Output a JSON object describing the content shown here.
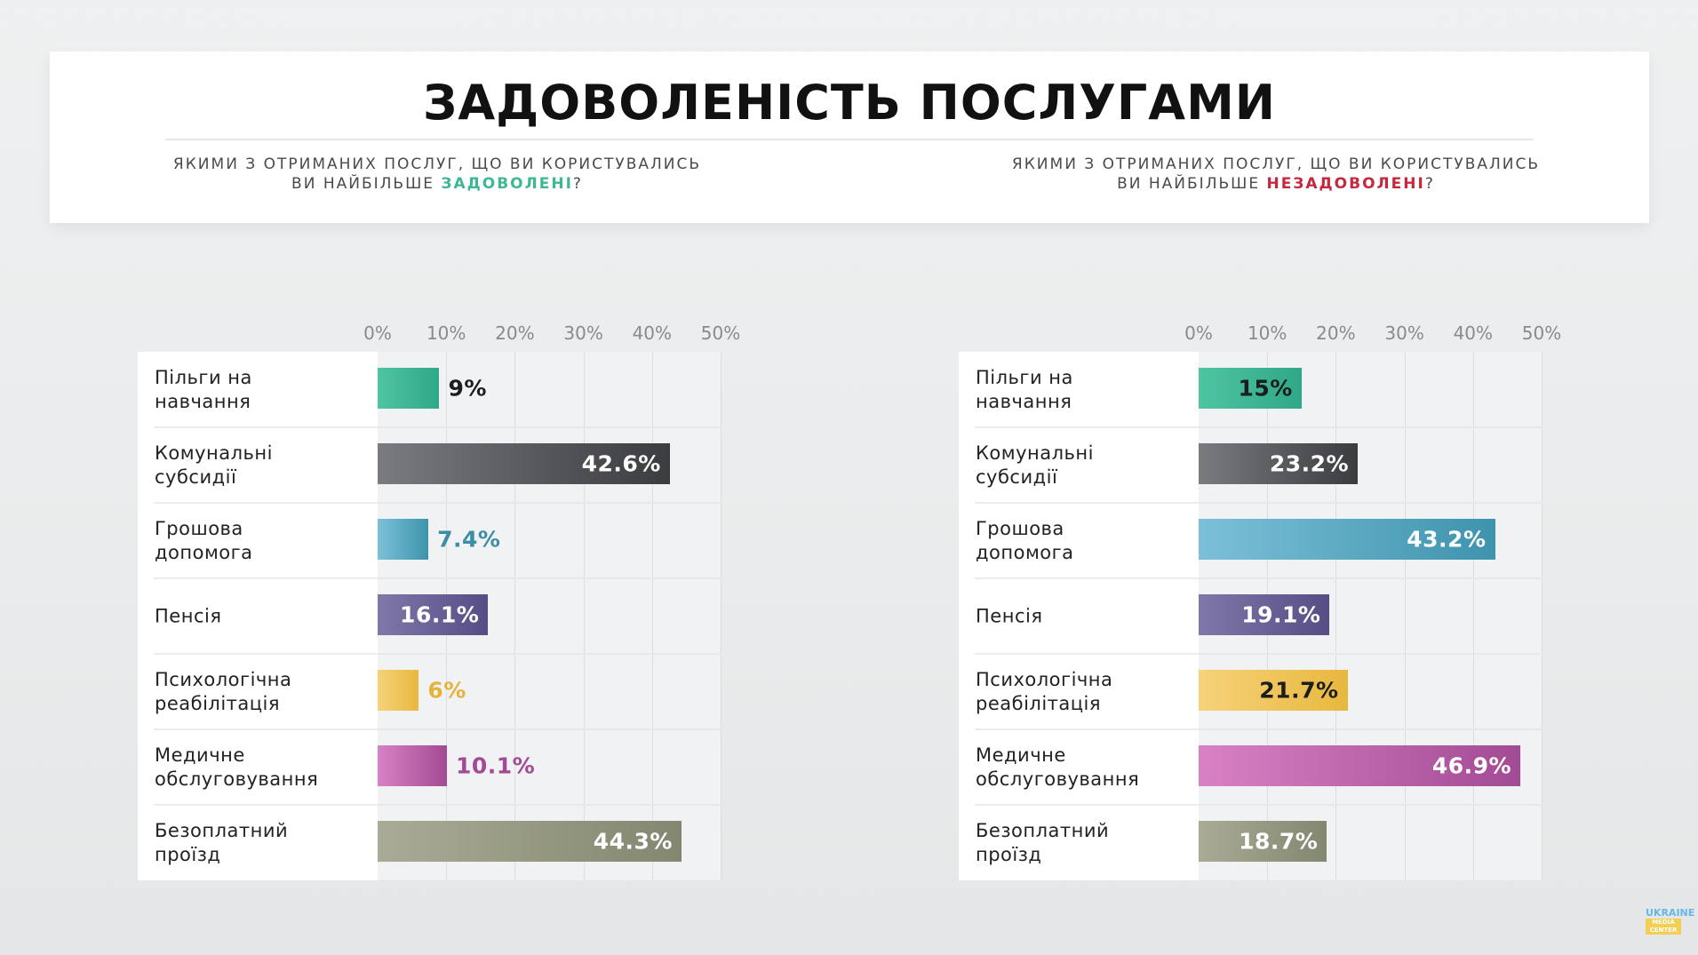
{
  "header": {
    "title": "ЗАДОВОЛЕНІСТЬ ПОСЛУГАМИ",
    "left_question": {
      "line1": "ЯКИМИ З ОТРИМАНИХ ПОСЛУГ, ЩО ВИ КОРИСТУВАЛИСЬ",
      "line2_prefix": "ВИ НАЙБІЛЬШЕ ",
      "highlight": "ЗАДОВОЛЕНІ",
      "suffix": "?",
      "highlight_color": "#3fb795"
    },
    "right_question": {
      "line1": "ЯКИМИ З ОТРИМАНИХ ПОСЛУГ, ЩО ВИ КОРИСТУВАЛИСЬ",
      "line2_prefix": "ВИ НАЙБІЛЬШЕ ",
      "highlight": "НЕЗАДОВОЛЕНІ",
      "suffix": "?",
      "highlight_color": "#c5283d"
    }
  },
  "axis_ticks": [
    "0%",
    "10%",
    "20%",
    "30%",
    "40%",
    "50%"
  ],
  "categories": [
    "Пільги на\nнавчання",
    "Комунальні\nсубсидії",
    "Грошова\nдопомога",
    "Пенсія",
    "Психологічна\nреабілітація",
    "Медичне\nобслуговування",
    "Безоплатний\nпроїзд"
  ],
  "colors": {
    "education": [
      "#4fc4a0",
      "#2fa889"
    ],
    "utilities": [
      "#7a7b80",
      "#3b3c40"
    ],
    "money": [
      "#7cc0d8",
      "#3e93ad"
    ],
    "pension": [
      "#7f78a8",
      "#574d86"
    ],
    "psych": [
      "#f6d27a",
      "#e8b83e"
    ],
    "medical": [
      "#d981c4",
      "#a24b95"
    ],
    "transport": [
      "#a9ab96",
      "#84876f"
    ]
  },
  "left_chart": {
    "labels": [
      "9%",
      "42.6%",
      "7.4%",
      "16.1%",
      "6%",
      "10.1%",
      "44.3%"
    ],
    "label_colors": [
      "#1d1d1d",
      "#ffffff",
      "#3a8fa6",
      "#ffffff",
      "#e3b33c",
      "#a24b95",
      "#ffffff"
    ]
  },
  "right_chart": {
    "labels": [
      "15%",
      "23.2%",
      "43.2%",
      "19.1%",
      "21.7%",
      "46.9%",
      "18.7%"
    ],
    "label_colors": [
      "#1d1d1d",
      "#ffffff",
      "#ffffff",
      "#ffffff",
      "#1d1d1d",
      "#ffffff",
      "#ffffff"
    ]
  },
  "logo": {
    "top": "UKRAINE",
    "bottom": "MEDIA CENTER"
  },
  "chart_data": [
    {
      "type": "bar",
      "orientation": "horizontal",
      "title": "ЯКИМИ З ОТРИМАНИХ ПОСЛУГ, ЩО ВИ КОРИСТУВАЛИСЬ ВИ НАЙБІЛЬШЕ ЗАДОВОЛЕНІ?",
      "categories": [
        "Пільги на навчання",
        "Комунальні субсидії",
        "Грошова допомога",
        "Пенсія",
        "Психологічна реабілітація",
        "Медичне обслуговування",
        "Безоплатний проїзд"
      ],
      "values": [
        9,
        42.6,
        7.4,
        16.1,
        6,
        10.1,
        44.3
      ],
      "xlabel": "",
      "ylabel": "",
      "xlim": [
        0,
        50
      ],
      "xticks": [
        "0%",
        "10%",
        "20%",
        "30%",
        "40%",
        "50%"
      ],
      "grid": true,
      "legend": null
    },
    {
      "type": "bar",
      "orientation": "horizontal",
      "title": "ЯКИМИ З ОТРИМАНИХ ПОСЛУГ, ЩО ВИ КОРИСТУВАЛИСЬ ВИ НАЙБІЛЬШЕ НЕЗАДОВОЛЕНІ?",
      "categories": [
        "Пільги на навчання",
        "Комунальні субсидії",
        "Грошова допомога",
        "Пенсія",
        "Психологічна реабілітація",
        "Медичне обслуговування",
        "Безоплатний проїзд"
      ],
      "values": [
        15,
        23.2,
        43.2,
        19.1,
        21.7,
        46.9,
        18.7
      ],
      "xlabel": "",
      "ylabel": "",
      "xlim": [
        0,
        50
      ],
      "xticks": [
        "0%",
        "10%",
        "20%",
        "30%",
        "40%",
        "50%"
      ],
      "grid": true,
      "legend": null
    }
  ]
}
